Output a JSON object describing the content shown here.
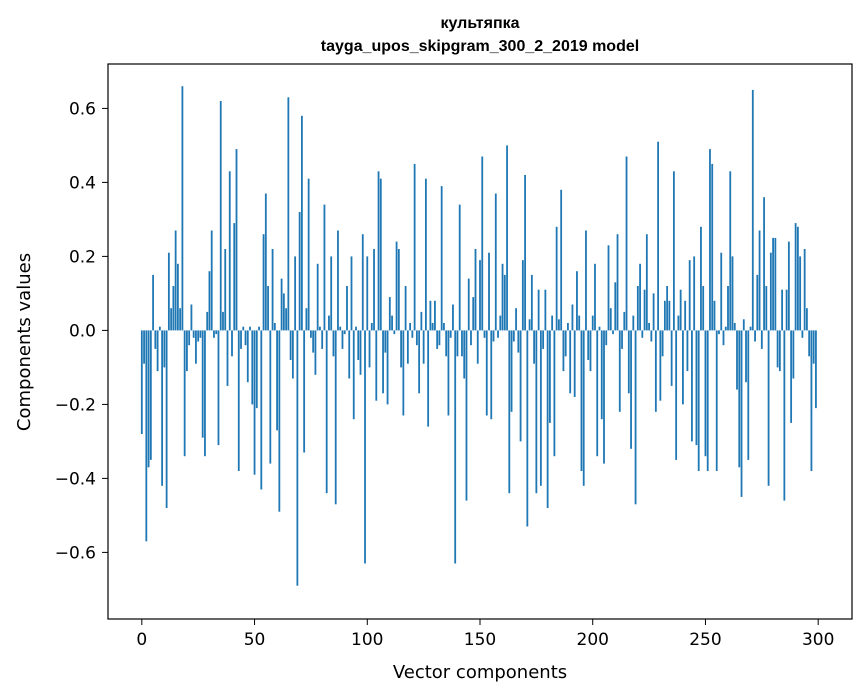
{
  "chart_data": {
    "type": "bar",
    "title": "культяпка",
    "subtitle": "tayga_upos_skipgram_300_2_2019 model",
    "xlabel": "Vector components",
    "ylabel": "Components values",
    "xlim": [
      -15,
      315
    ],
    "ylim": [
      -0.78,
      0.72
    ],
    "xticks": [
      0,
      50,
      100,
      150,
      200,
      250,
      300
    ],
    "yticks": [
      -0.6,
      -0.4,
      -0.2,
      0.0,
      0.2,
      0.4,
      0.6
    ],
    "xtick_labels": [
      "0",
      "50",
      "100",
      "150",
      "200",
      "250",
      "300"
    ],
    "ytick_labels": [
      "−0.6",
      "−0.4",
      "−0.2",
      "0.0",
      "0.2",
      "0.4",
      "0.6"
    ],
    "bar_color": "#1f77b4",
    "categories": [
      0,
      1,
      2,
      3,
      4,
      5,
      6,
      7,
      8,
      9,
      10,
      11,
      12,
      13,
      14,
      15,
      16,
      17,
      18,
      19,
      20,
      21,
      22,
      23,
      24,
      25,
      26,
      27,
      28,
      29,
      30,
      31,
      32,
      33,
      34,
      35,
      36,
      37,
      38,
      39,
      40,
      41,
      42,
      43,
      44,
      45,
      46,
      47,
      48,
      49,
      50,
      51,
      52,
      53,
      54,
      55,
      56,
      57,
      58,
      59,
      60,
      61,
      62,
      63,
      64,
      65,
      66,
      67,
      68,
      69,
      70,
      71,
      72,
      73,
      74,
      75,
      76,
      77,
      78,
      79,
      80,
      81,
      82,
      83,
      84,
      85,
      86,
      87,
      88,
      89,
      90,
      91,
      92,
      93,
      94,
      95,
      96,
      97,
      98,
      99,
      100,
      101,
      102,
      103,
      104,
      105,
      106,
      107,
      108,
      109,
      110,
      111,
      112,
      113,
      114,
      115,
      116,
      117,
      118,
      119,
      120,
      121,
      122,
      123,
      124,
      125,
      126,
      127,
      128,
      129,
      130,
      131,
      132,
      133,
      134,
      135,
      136,
      137,
      138,
      139,
      140,
      141,
      142,
      143,
      144,
      145,
      146,
      147,
      148,
      149,
      150,
      151,
      152,
      153,
      154,
      155,
      156,
      157,
      158,
      159,
      160,
      161,
      162,
      163,
      164,
      165,
      166,
      167,
      168,
      169,
      170,
      171,
      172,
      173,
      174,
      175,
      176,
      177,
      178,
      179,
      180,
      181,
      182,
      183,
      184,
      185,
      186,
      187,
      188,
      189,
      190,
      191,
      192,
      193,
      194,
      195,
      196,
      197,
      198,
      199,
      200,
      201,
      202,
      203,
      204,
      205,
      206,
      207,
      208,
      209,
      210,
      211,
      212,
      213,
      214,
      215,
      216,
      217,
      218,
      219,
      220,
      221,
      222,
      223,
      224,
      225,
      226,
      227,
      228,
      229,
      230,
      231,
      232,
      233,
      234,
      235,
      236,
      237,
      238,
      239,
      240,
      241,
      242,
      243,
      244,
      245,
      246,
      247,
      248,
      249,
      250,
      251,
      252,
      253,
      254,
      255,
      256,
      257,
      258,
      259,
      260,
      261,
      262,
      263,
      264,
      265,
      266,
      267,
      268,
      269,
      270,
      271,
      272,
      273,
      274,
      275,
      276,
      277,
      278,
      279,
      280,
      281,
      282,
      283,
      284,
      285,
      286,
      287,
      288,
      289,
      290,
      291,
      292,
      293,
      294,
      295,
      296,
      297,
      298,
      299
    ],
    "values": [
      -0.28,
      -0.09,
      -0.57,
      -0.37,
      -0.35,
      0.15,
      -0.05,
      -0.11,
      0.01,
      -0.42,
      -0.1,
      -0.48,
      0.21,
      0.06,
      0.12,
      0.27,
      0.18,
      0.06,
      0.66,
      -0.34,
      -0.11,
      -0.04,
      0.07,
      -0.02,
      -0.09,
      -0.03,
      -0.02,
      -0.29,
      -0.34,
      0.05,
      0.16,
      0.27,
      -0.02,
      -0.01,
      -0.31,
      0.62,
      0.05,
      0.22,
      -0.15,
      0.43,
      -0.07,
      0.29,
      0.49,
      -0.38,
      -0.05,
      0.01,
      -0.04,
      -0.14,
      0.01,
      -0.2,
      -0.39,
      -0.21,
      0.01,
      -0.43,
      0.26,
      0.37,
      0.12,
      -0.36,
      0.22,
      0.02,
      -0.27,
      -0.49,
      0.14,
      0.1,
      0.06,
      0.63,
      -0.08,
      -0.13,
      0.2,
      -0.69,
      0.32,
      0.58,
      -0.33,
      0.06,
      0.41,
      -0.02,
      -0.06,
      -0.12,
      0.18,
      0.01,
      -0.05,
      0.34,
      -0.44,
      0.04,
      0.2,
      -0.07,
      -0.47,
      0.27,
      0.01,
      -0.05,
      -0.01,
      0.12,
      -0.13,
      0.2,
      -0.24,
      0.01,
      -0.08,
      -0.12,
      0.26,
      -0.63,
      0.2,
      -0.1,
      0.02,
      0.22,
      -0.19,
      0.43,
      0.41,
      -0.17,
      -0.06,
      -0.2,
      0.09,
      0.04,
      -0.01,
      0.24,
      0.22,
      -0.1,
      -0.23,
      0.12,
      -0.09,
      0.02,
      -0.02,
      0.45,
      -0.04,
      -0.17,
      0.05,
      -0.09,
      0.41,
      -0.26,
      0.08,
      0.02,
      0.08,
      -0.05,
      -0.04,
      0.39,
      0.02,
      -0.07,
      -0.23,
      -0.02,
      0.07,
      -0.63,
      -0.07,
      0.34,
      -0.07,
      -0.13,
      -0.46,
      0.14,
      -0.04,
      0.09,
      0.22,
      -0.09,
      0.19,
      0.47,
      -0.02,
      -0.23,
      0.21,
      -0.24,
      -0.03,
      0.37,
      -0.02,
      0.04,
      0.18,
      0.15,
      0.5,
      -0.44,
      -0.22,
      -0.03,
      0.06,
      -0.06,
      -0.3,
      0.19,
      0.42,
      -0.53,
      0.03,
      0.15,
      -0.09,
      -0.44,
      0.11,
      -0.42,
      -0.05,
      0.11,
      -0.48,
      -0.25,
      0.04,
      -0.34,
      0.28,
      0.03,
      0.38,
      -0.11,
      -0.07,
      0.02,
      -0.17,
      0.07,
      -0.18,
      0.16,
      0.04,
      -0.38,
      -0.42,
      0.27,
      -0.08,
      -0.11,
      0.04,
      0.18,
      -0.34,
      0.01,
      -0.24,
      -0.36,
      -0.04,
      0.23,
      0.06,
      -0.01,
      0.13,
      0.26,
      -0.22,
      -0.05,
      0.05,
      0.47,
      -0.17,
      -0.32,
      0.04,
      -0.47,
      0.12,
      0.18,
      -0.02,
      0.11,
      0.26,
      0.02,
      -0.03,
      0.1,
      -0.22,
      0.51,
      -0.19,
      -0.07,
      0.08,
      0.12,
      0.08,
      -0.15,
      0.43,
      -0.35,
      0.04,
      0.11,
      -0.2,
      0.08,
      -0.11,
      0.19,
      -0.3,
      0.2,
      -0.31,
      -0.38,
      0.28,
      0.12,
      -0.34,
      -0.38,
      0.49,
      0.45,
      0.08,
      -0.38,
      -0.01,
      0.21,
      -0.04,
      0.01,
      0.12,
      0.43,
      0.2,
      0.02,
      -0.16,
      -0.37,
      -0.45,
      0.03,
      -0.14,
      -0.35,
      0.01,
      0.65,
      -0.03,
      0.15,
      0.27,
      -0.05,
      0.36,
      0.12,
      -0.42,
      0.21,
      0.25,
      0.25,
      -0.1,
      -0.11,
      0.11,
      -0.46,
      0.11,
      0.24,
      -0.25,
      -0.13,
      0.29,
      0.28,
      0.2,
      -0.02,
      0.22,
      0.06,
      -0.07,
      -0.38,
      -0.09,
      -0.21
    ]
  }
}
